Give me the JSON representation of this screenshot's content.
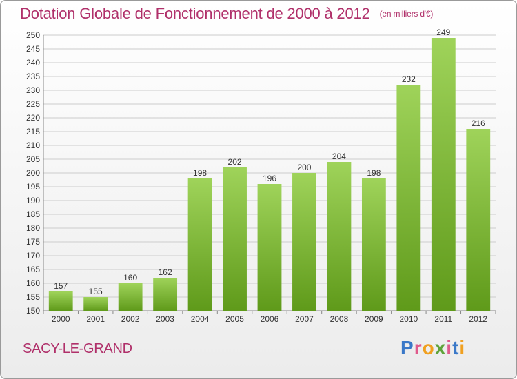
{
  "header": {
    "title": "Dotation Globale de Fonctionnement de 2000 à 2012",
    "unit_note": "(en milliers d'€)"
  },
  "footer": {
    "city": "SACY-LE-GRAND",
    "brand": "Proxiti",
    "brand_colors": [
      "#3a78c8",
      "#e05a8c",
      "#f0a020",
      "#5fa33a",
      "#e05a8c",
      "#3a78c8",
      "#f0a020"
    ]
  },
  "colors": {
    "bar_top": "#9fd35a",
    "bar_bottom": "#5f9a1a",
    "accent": "#b0306a",
    "grid": "#cccccc"
  },
  "chart_data": {
    "type": "bar",
    "categories": [
      "2000",
      "2001",
      "2002",
      "2003",
      "2004",
      "2005",
      "2006",
      "2007",
      "2008",
      "2009",
      "2010",
      "2011",
      "2012"
    ],
    "values": [
      157,
      155,
      160,
      162,
      198,
      202,
      196,
      200,
      204,
      198,
      232,
      249,
      216
    ],
    "title": "Dotation Globale de Fonctionnement de 2000 à 2012",
    "subtitle": "(en milliers d'€)",
    "ylim": [
      150,
      250
    ],
    "ytick_step": 5,
    "grid": true,
    "legend": "none"
  }
}
